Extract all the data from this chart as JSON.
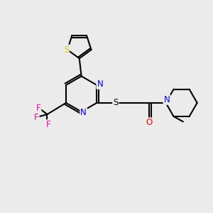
{
  "background_color": "#ebebeb",
  "bond_color": "#000000",
  "atom_colors": {
    "S_thiophene": "#cccc00",
    "S_thioether": "#000000",
    "N": "#0000ff",
    "O": "#ff0000",
    "F": "#ff00aa",
    "C": "#000000"
  },
  "lw": 1.5
}
